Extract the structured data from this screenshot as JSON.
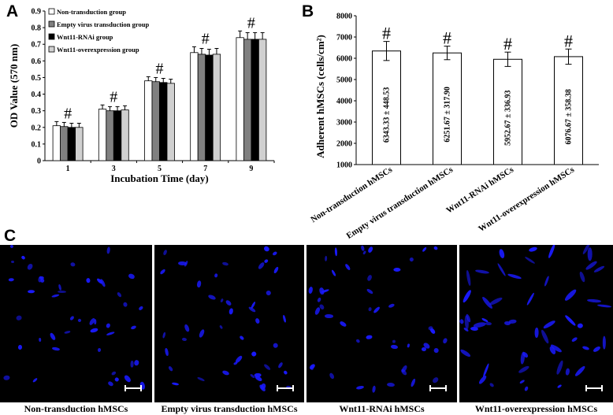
{
  "panels": {
    "a_letter": "A",
    "b_letter": "B",
    "c_letter": "C"
  },
  "colors": {
    "non_transduction": "#ffffff",
    "empty_virus": "#808080",
    "rnai": "#000000",
    "overexpression": "#d0d0d0",
    "nucleus": "#1a1aff",
    "micro_background": "#000000"
  },
  "chart_data": [
    {
      "type": "bar",
      "panel": "A",
      "xlabel": "Incubation  Time (day)",
      "ylabel": "OD  Value  (570 nm)",
      "categories": [
        "1",
        "3",
        "5",
        "7",
        "9"
      ],
      "ylim": [
        0,
        0.9
      ],
      "yticks": [
        "0",
        "0.1",
        "0.2",
        "0.3",
        "0.4",
        "0.5",
        "0.6",
        "0.7",
        "0.8",
        "0.9"
      ],
      "legend": "top-left",
      "series": [
        {
          "name": "Non-transduction group",
          "color": "#ffffff",
          "values": [
            0.21,
            0.31,
            0.48,
            0.65,
            0.74
          ],
          "errors": [
            0.025,
            0.025,
            0.025,
            0.035,
            0.04
          ]
        },
        {
          "name": "Empty virus transduction group",
          "color": "#808080",
          "values": [
            0.205,
            0.3,
            0.475,
            0.64,
            0.73
          ],
          "errors": [
            0.025,
            0.025,
            0.025,
            0.035,
            0.04
          ]
        },
        {
          "name": "Wnt11-RNAi group",
          "color": "#000000",
          "values": [
            0.2,
            0.3,
            0.47,
            0.635,
            0.73
          ],
          "errors": [
            0.025,
            0.025,
            0.025,
            0.035,
            0.04
          ]
        },
        {
          "name": "Wnt11-overexpression group",
          "color": "#d0d0d0",
          "values": [
            0.2,
            0.305,
            0.465,
            0.64,
            0.73
          ],
          "errors": [
            0.025,
            0.025,
            0.025,
            0.035,
            0.04
          ]
        }
      ],
      "annotations": [
        "#",
        "#",
        "#",
        "#",
        "#"
      ]
    },
    {
      "type": "bar",
      "panel": "B",
      "ylabel": "Adherent hMSCs (cells/cm²)",
      "categories": [
        "Non-transduction hMSCs",
        "Empty virus transduction hMSCs",
        "Wnt11-RNAi hMSCs",
        "Wnt11-overexpression hMSCs"
      ],
      "values": [
        6343.33,
        6251.67,
        5952.67,
        6076.67
      ],
      "errors": [
        448.53,
        317.9,
        336.93,
        358.38
      ],
      "data_labels": [
        "6343.33 ± 448.53",
        "6251.67 ± 317.90",
        "5952.67 ± 336.93",
        "6076.67 ± 358.38"
      ],
      "ylim": [
        1000,
        8000
      ],
      "yticks": [
        "1000",
        "2000",
        "3000",
        "4000",
        "5000",
        "6000",
        "7000",
        "8000"
      ],
      "annotations": [
        "#",
        "#",
        "#",
        "#"
      ]
    }
  ],
  "micrographs": {
    "captions": [
      "Non-transduction hMSCs",
      "Empty virus transduction hMSCs",
      "Wnt11-RNAi hMSCs",
      "Wnt11-overexpression hMSCs"
    ]
  }
}
